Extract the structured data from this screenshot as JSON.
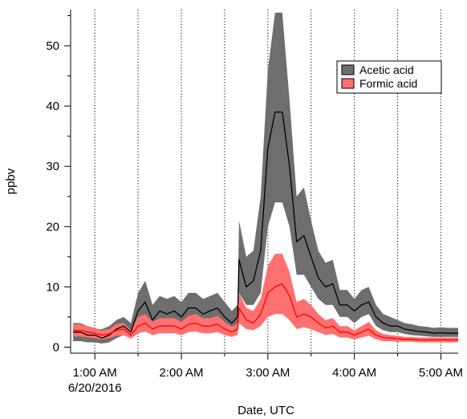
{
  "chart_data": {
    "type": "area",
    "xlabel": "Date, UTC",
    "ylabel": "ppbv",
    "x_unit": "hours UTC on 6/20/2016",
    "xlim": [
      0.72,
      5.2
    ],
    "ylim": [
      -1,
      56
    ],
    "grid": "dotted vertical lines at every half hour",
    "legend_position": "top-right",
    "x_ticks": [
      {
        "value": 1.0,
        "label": "1:00 AM",
        "sublabel": "6/20/2016"
      },
      {
        "value": 2.0,
        "label": "2:00 AM",
        "sublabel": ""
      },
      {
        "value": 3.0,
        "label": "3:00 AM",
        "sublabel": ""
      },
      {
        "value": 4.0,
        "label": "4:00 AM",
        "sublabel": ""
      },
      {
        "value": 5.0,
        "label": "5:00 AM",
        "sublabel": ""
      }
    ],
    "y_ticks": [
      0,
      10,
      20,
      30,
      40,
      50
    ],
    "x_gridlines": [
      1.0,
      1.5,
      2.0,
      2.5,
      3.0,
      3.5,
      4.0,
      4.5,
      5.0
    ],
    "series": [
      {
        "name": "Acetic acid",
        "line_color": "#000000",
        "fill_color": "#6e6e6e",
        "x": [
          0.75,
          0.833,
          0.917,
          1.0,
          1.083,
          1.167,
          1.25,
          1.333,
          1.417,
          1.5,
          1.583,
          1.667,
          1.75,
          1.833,
          1.917,
          2.0,
          2.083,
          2.167,
          2.25,
          2.333,
          2.417,
          2.5,
          2.583,
          2.65,
          2.667,
          2.75,
          2.833,
          2.917,
          3.0,
          3.083,
          3.167,
          3.25,
          3.333,
          3.417,
          3.5,
          3.583,
          3.667,
          3.75,
          3.833,
          3.917,
          4.0,
          4.083,
          4.167,
          4.25,
          4.333,
          4.417,
          4.5,
          4.583,
          4.667,
          4.75,
          4.833,
          4.917,
          5.0,
          5.083,
          5.2
        ],
        "y": [
          2.5,
          2.5,
          2.0,
          2.0,
          1.5,
          2.0,
          3.0,
          3.5,
          2.5,
          6.0,
          7.5,
          4.5,
          6.0,
          5.5,
          6.0,
          5.0,
          6.5,
          6.5,
          5.5,
          6.0,
          6.5,
          5.0,
          4.0,
          5.0,
          14.5,
          10.0,
          11.0,
          16.0,
          33.0,
          39.0,
          39.0,
          30.0,
          17.5,
          18.5,
          15.0,
          11.5,
          10.0,
          10.5,
          7.0,
          7.0,
          6.0,
          7.0,
          7.5,
          5.0,
          4.0,
          3.5,
          3.5,
          3.0,
          2.8,
          2.6,
          2.5,
          2.3,
          2.4,
          2.3,
          2.3
        ],
        "lower": [
          1.0,
          1.0,
          0.8,
          0.8,
          0.6,
          0.8,
          1.5,
          2.0,
          1.5,
          3.5,
          4.5,
          3.0,
          3.5,
          3.5,
          3.5,
          3.0,
          4.0,
          4.0,
          3.5,
          4.0,
          4.0,
          3.0,
          2.5,
          3.0,
          9.0,
          7.0,
          7.0,
          9.0,
          20.0,
          24.0,
          24.0,
          20.0,
          12.0,
          12.0,
          10.0,
          8.0,
          7.0,
          7.0,
          5.0,
          5.0,
          4.0,
          5.0,
          5.5,
          3.5,
          2.8,
          2.5,
          2.5,
          2.2,
          2.0,
          1.9,
          1.8,
          1.7,
          1.7,
          1.7,
          1.7
        ],
        "upper": [
          4.0,
          4.0,
          3.5,
          3.0,
          3.0,
          3.5,
          4.5,
          5.0,
          4.0,
          9.0,
          11.0,
          7.0,
          8.5,
          8.0,
          8.5,
          7.5,
          9.0,
          9.0,
          8.0,
          8.5,
          9.0,
          7.5,
          6.0,
          7.0,
          21.0,
          15.0,
          16.0,
          25.0,
          46.0,
          55.5,
          55.5,
          41.0,
          25.0,
          26.5,
          21.0,
          16.0,
          14.0,
          14.5,
          9.5,
          9.5,
          8.0,
          9.5,
          10.0,
          7.0,
          5.5,
          5.0,
          4.5,
          4.0,
          3.8,
          3.5,
          3.4,
          3.2,
          3.3,
          3.2,
          3.2
        ]
      },
      {
        "name": "Formic acid",
        "line_color": "#ff0000",
        "fill_color": "#ff7070",
        "x": [
          0.75,
          0.833,
          0.917,
          1.0,
          1.083,
          1.167,
          1.25,
          1.333,
          1.417,
          1.5,
          1.583,
          1.667,
          1.75,
          1.833,
          1.917,
          2.0,
          2.083,
          2.167,
          2.25,
          2.333,
          2.417,
          2.5,
          2.583,
          2.65,
          2.667,
          2.75,
          2.833,
          2.917,
          3.0,
          3.083,
          3.167,
          3.25,
          3.333,
          3.417,
          3.5,
          3.583,
          3.667,
          3.75,
          3.833,
          3.917,
          4.0,
          4.083,
          4.167,
          4.25,
          4.333,
          4.417,
          4.5,
          4.583,
          4.667,
          4.75,
          4.833,
          4.917,
          5.0,
          5.083,
          5.2
        ],
        "y": [
          2.8,
          2.8,
          2.5,
          2.3,
          2.0,
          2.2,
          2.8,
          3.0,
          2.0,
          3.5,
          4.0,
          3.0,
          3.5,
          3.5,
          3.5,
          3.0,
          3.8,
          4.0,
          3.5,
          3.5,
          3.8,
          3.0,
          2.5,
          3.0,
          6.5,
          4.5,
          4.0,
          5.5,
          9.0,
          10.0,
          10.5,
          8.5,
          5.0,
          5.5,
          5.0,
          4.0,
          3.2,
          3.5,
          2.5,
          2.5,
          2.0,
          2.5,
          3.0,
          2.0,
          1.6,
          1.5,
          1.4,
          1.3,
          1.3,
          1.2,
          1.2,
          1.2,
          1.2,
          1.2,
          1.2
        ],
        "lower": [
          1.8,
          1.8,
          1.6,
          1.5,
          1.3,
          1.5,
          1.9,
          2.0,
          1.4,
          2.3,
          2.6,
          2.0,
          2.3,
          2.3,
          2.3,
          2.0,
          2.5,
          2.6,
          2.3,
          2.3,
          2.5,
          2.0,
          1.7,
          2.0,
          4.0,
          3.0,
          2.8,
          3.5,
          5.0,
          5.5,
          5.5,
          4.5,
          3.0,
          3.3,
          3.0,
          2.5,
          2.0,
          2.2,
          1.6,
          1.6,
          1.3,
          1.6,
          1.9,
          1.3,
          1.0,
          1.0,
          0.9,
          0.9,
          0.9,
          0.8,
          0.8,
          0.8,
          0.8,
          0.8,
          0.8
        ],
        "upper": [
          3.8,
          3.8,
          3.5,
          3.2,
          2.8,
          3.0,
          3.8,
          4.0,
          2.8,
          5.0,
          5.5,
          4.2,
          4.8,
          4.8,
          4.8,
          4.2,
          5.2,
          5.5,
          4.8,
          4.8,
          5.2,
          4.2,
          3.4,
          4.0,
          9.0,
          6.5,
          6.0,
          8.0,
          13.5,
          15.5,
          15.5,
          12.5,
          7.5,
          8.0,
          7.0,
          5.5,
          4.5,
          4.8,
          3.5,
          3.5,
          2.8,
          3.5,
          4.2,
          2.8,
          2.2,
          2.0,
          1.9,
          1.7,
          1.7,
          1.6,
          1.6,
          1.6,
          1.6,
          1.6,
          1.6
        ]
      }
    ]
  }
}
